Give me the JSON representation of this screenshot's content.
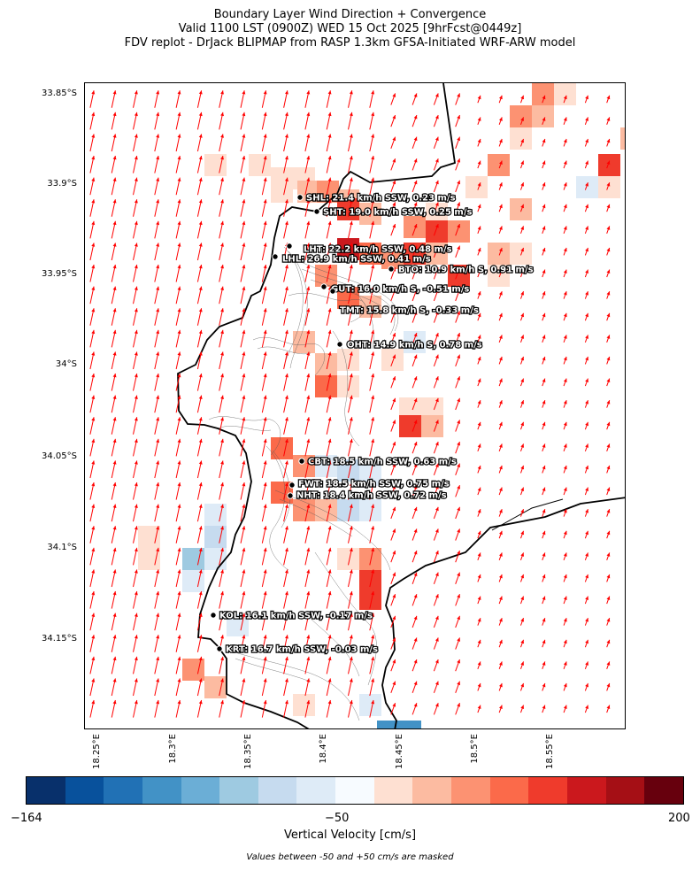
{
  "title": {
    "line1": "Boundary Layer Wind Direction + Convergence",
    "line2": "Valid 1100 LST (0900Z) WED 15 Oct 2025 [9hrFcst@0449z]",
    "line3": "FDV replot - DrJack BLIPMAP from RASP 1.3km GFSA-Initiated WRF-ARW model"
  },
  "lat_labels": [
    "33.85°S",
    "33.9°S",
    "33.95°S",
    "34°S",
    "34.05°S",
    "34.1°S",
    "34.15°S"
  ],
  "lon_labels": [
    "18.25°E",
    "18.3°E",
    "18.35°E",
    "18.4°E",
    "18.45°E",
    "18.5°E",
    "18.55°E"
  ],
  "stations": [
    {
      "code": "SHL",
      "label": "SHL: 21.4 km/h SSW, 0.23 m/s"
    },
    {
      "code": "SHT",
      "label": "SHT: 19.0 km/h SSW, 0.25 m/s"
    },
    {
      "code": "LHT",
      "label": "LHT: 22.2 km/h SSW, 0.48 m/s"
    },
    {
      "code": "LHL",
      "label": "LHL: 26.9 km/h SSW, 0.41 m/s"
    },
    {
      "code": "BTO",
      "label": "BTO: 10.9 km/h S, 0.91 m/s"
    },
    {
      "code": "GUT",
      "label": "GUT: 16.0 km/h S, -0.51 m/s"
    },
    {
      "code": "TMT",
      "label": "TMT: 15.8 km/h S, -0.33 m/s"
    },
    {
      "code": "OHT",
      "label": "OHT: 14.9 km/h S, 0.78 m/s"
    },
    {
      "code": "CBT",
      "label": "CBT: 18.5 km/h SSW, 0.63 m/s"
    },
    {
      "code": "FWT",
      "label": "FWT: 18.5 km/h SSW, 0.75 m/s"
    },
    {
      "code": "NHT",
      "label": "NHT: 18.4 km/h SSW, 0.72 m/s"
    },
    {
      "code": "KOL",
      "label": "KOL: 16.1 km/h SSW, -0.17 m/s"
    },
    {
      "code": "KRT",
      "label": "KRT: 16.7 km/h SSW, -0.03 m/s"
    }
  ],
  "colorbar": {
    "min_label": "−164",
    "mid_label": "−50",
    "max_label": "200",
    "label": "Vertical Velocity [cm/s]",
    "colors": [
      "#08306b",
      "#08519c",
      "#2171b5",
      "#4292c6",
      "#6baed6",
      "#9ecae1",
      "#c6dbef",
      "#deebf7",
      "#f7fbff",
      "#fee0d2",
      "#fcbba1",
      "#fc9272",
      "#fb6a4a",
      "#ef3b2c",
      "#cb181d",
      "#a50f15",
      "#67000d"
    ]
  },
  "footnote": "Values between -50 and +50 cm/s are masked",
  "colors": {
    "wind_arrow": "#ff0000",
    "coastline": "#000000",
    "terrain_contour": "#555555"
  }
}
